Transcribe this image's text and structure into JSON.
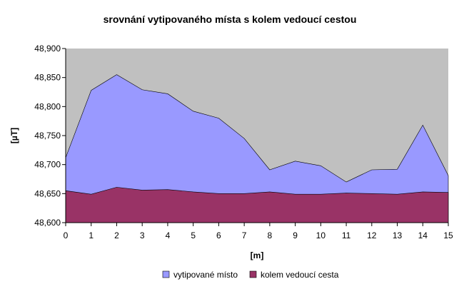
{
  "chart_data": {
    "type": "area",
    "title": "srovnání vytipovaného místa s kolem vedoucí cestou",
    "xlabel": "[m]",
    "ylabel": "[µT]",
    "x": [
      0,
      1,
      2,
      3,
      4,
      5,
      6,
      7,
      8,
      9,
      10,
      11,
      12,
      13,
      14,
      15
    ],
    "xlim": [
      0,
      15
    ],
    "ylim": [
      48600,
      48900
    ],
    "y_ticks": [
      48600,
      48650,
      48700,
      48750,
      48800,
      48850,
      48900
    ],
    "y_tick_labels": [
      "48,600",
      "48,650",
      "48,700",
      "48,750",
      "48,800",
      "48,850",
      "48,900"
    ],
    "grid": false,
    "plot_background": "#c0c0c0",
    "legend_position": "bottom",
    "series": [
      {
        "name": "vytipované místo",
        "color": "#9999ff",
        "values": [
          48712,
          48828,
          48855,
          48829,
          48822,
          48792,
          48780,
          48745,
          48691,
          48706,
          48698,
          48670,
          48691,
          48692,
          48768,
          48681
        ]
      },
      {
        "name": "kolem vedoucí cesta",
        "color": "#993366",
        "values": [
          48655,
          48649,
          48661,
          48656,
          48657,
          48653,
          48650,
          48650,
          48653,
          48649,
          48649,
          48651,
          48650,
          48649,
          48653,
          48652
        ]
      }
    ]
  }
}
